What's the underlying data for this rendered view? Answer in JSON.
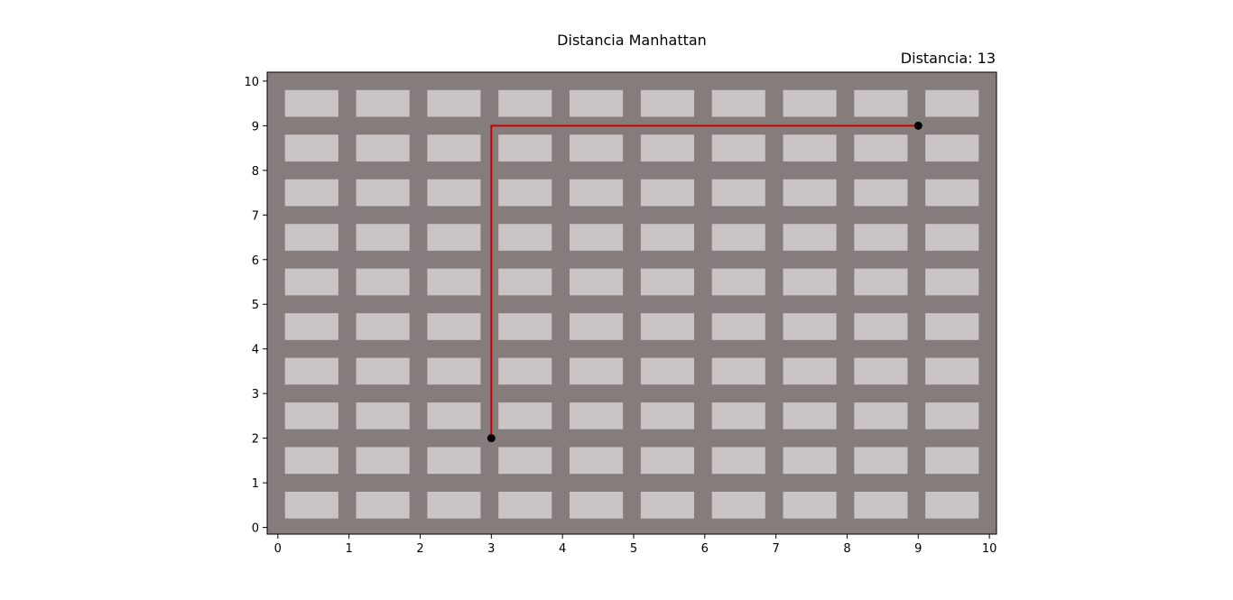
{
  "chart_data": {
    "type": "line",
    "title": "Distancia Manhattan",
    "annotation": "Distancia: 13",
    "xlabel": "",
    "ylabel": "",
    "xlim": [
      -0.15,
      10.1
    ],
    "ylim": [
      -0.15,
      10.2
    ],
    "x_ticks": [
      "0",
      "1",
      "2",
      "3",
      "4",
      "5",
      "6",
      "7",
      "8",
      "9",
      "10"
    ],
    "y_ticks": [
      "0",
      "1",
      "2",
      "3",
      "4",
      "5",
      "6",
      "7",
      "8",
      "9",
      "10"
    ],
    "grid": false,
    "legend": "none",
    "background_color": "#857c7c",
    "block_color": "#cbc4c4",
    "path_color": "#cc0000",
    "point_color": "#000000",
    "blocks": {
      "columns": [
        0,
        1,
        2,
        3,
        4,
        5,
        6,
        7,
        8,
        9
      ],
      "rows": [
        0,
        1,
        2,
        3,
        4,
        5,
        6,
        7,
        8,
        9
      ],
      "x_from": 0.1,
      "x_to": 0.85,
      "y_from": 0.2,
      "y_to": 0.8
    },
    "path": {
      "x": [
        3,
        3,
        9
      ],
      "y": [
        2,
        9,
        9
      ]
    },
    "points": [
      {
        "x": 3,
        "y": 2
      },
      {
        "x": 9,
        "y": 9
      }
    ]
  }
}
